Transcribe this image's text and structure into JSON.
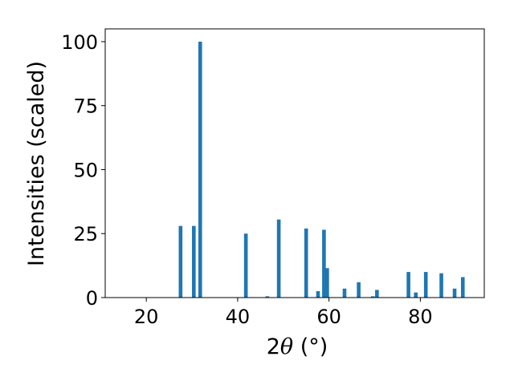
{
  "chart_data": {
    "type": "bar",
    "title": "",
    "xlabel_parts": {
      "prefix": "2",
      "symbol": "θ",
      "suffix": " (°)"
    },
    "ylabel": "Intensities (scaled)",
    "xlim": [
      11,
      94
    ],
    "ylim": [
      0,
      105
    ],
    "xticks": [
      20,
      40,
      60,
      80
    ],
    "yticks": [
      0,
      25,
      50,
      75,
      100
    ],
    "grid": false,
    "legend": "none",
    "bar_color": "#1f77b4",
    "x": [
      27.5,
      30.4,
      31.8,
      41.8,
      46.5,
      49.0,
      55.0,
      57.6,
      58.9,
      59.6,
      63.4,
      66.5,
      69.6,
      70.5,
      77.4,
      79.0,
      81.2,
      84.6,
      87.5,
      89.3
    ],
    "values": [
      28,
      28,
      100,
      25,
      0.5,
      30.5,
      27,
      2.5,
      26.5,
      11.5,
      3.5,
      6,
      0.5,
      3,
      10,
      2,
      10,
      9.5,
      3.5,
      8
    ]
  }
}
